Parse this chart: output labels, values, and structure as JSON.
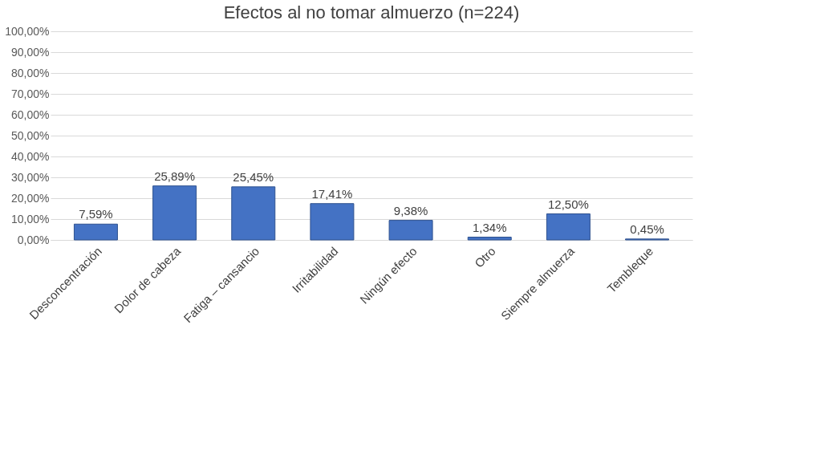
{
  "chart_data": {
    "type": "bar",
    "title": "Efectos al no tomar almuerzo  (n=224)",
    "categories": [
      "Desconcentración",
      "Dolor de cabeza",
      "Fatiga – cansancio",
      "Irritabilidad",
      "Ningún efecto",
      "Otro",
      "Siempre almuerza",
      "Tembleque"
    ],
    "values": [
      7.59,
      25.89,
      25.45,
      17.41,
      9.38,
      1.34,
      12.5,
      0.45
    ],
    "value_labels": [
      "7,59%",
      "25,89%",
      "25,45%",
      "17,41%",
      "9,38%",
      "1,34%",
      "12,50%",
      "0,45%"
    ],
    "color": "#4472c4",
    "ylim": [
      0,
      100
    ],
    "yticks": [
      {
        "value": 0,
        "label": "0,00%"
      },
      {
        "value": 10,
        "label": "10,00%"
      },
      {
        "value": 20,
        "label": "20,00%"
      },
      {
        "value": 30,
        "label": "30,00%"
      },
      {
        "value": 40,
        "label": "40,00%"
      },
      {
        "value": 50,
        "label": "50,00%"
      },
      {
        "value": 60,
        "label": "60,00%"
      },
      {
        "value": 70,
        "label": "70,00%"
      },
      {
        "value": 80,
        "label": "80,00%"
      },
      {
        "value": 90,
        "label": "90,00%"
      },
      {
        "value": 100,
        "label": "100,00%"
      }
    ],
    "grid": "y"
  }
}
